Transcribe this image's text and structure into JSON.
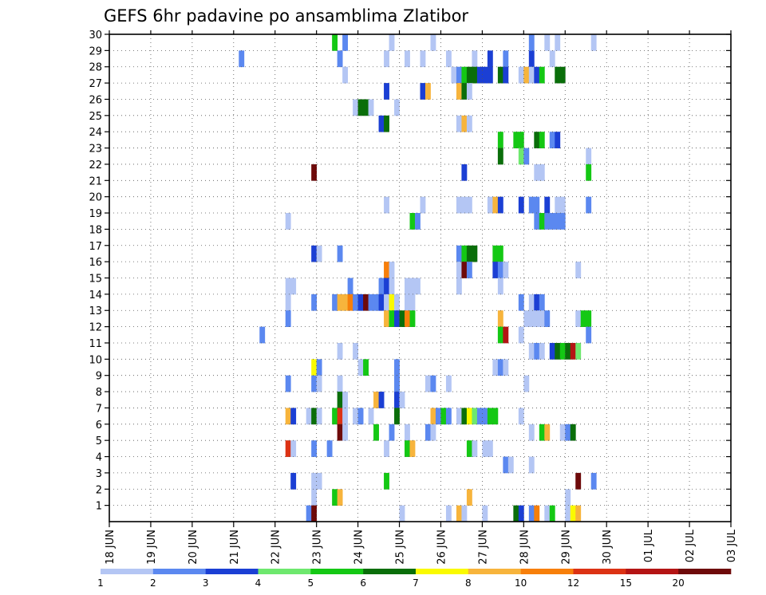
{
  "chart_data": {
    "type": "heatmap",
    "title": "GEFS 6hr padavine po ansamblima Zlatibor",
    "x_ticks": [
      "18 JUN",
      "19 JUN",
      "20 JUN",
      "21 JUN",
      "22 JUN",
      "23 JUN",
      "24 JUN",
      "25 JUN",
      "26 JUN",
      "27 JUN",
      "28 JUN",
      "29 JUN",
      "30 JUN",
      "01 JUL",
      "02 JUL",
      "03 JUL"
    ],
    "x_range": [
      "18 JUN 00",
      "03 JUL 00"
    ],
    "x_step_hours": 6,
    "y_ticks": [
      1,
      2,
      3,
      4,
      5,
      6,
      7,
      8,
      9,
      10,
      11,
      12,
      13,
      14,
      15,
      16,
      17,
      18,
      19,
      20,
      21,
      22,
      23,
      24,
      25,
      26,
      27,
      28,
      29,
      30
    ],
    "y_range": [
      0,
      30
    ],
    "grid": true,
    "legend": {
      "position": "bottom",
      "labels": [
        "1",
        "2",
        "3",
        "4",
        "5",
        "6",
        "7",
        "8",
        "10",
        "12",
        "15",
        "20"
      ],
      "colors": [
        "#b4c6f4",
        "#5b88f0",
        "#1b3fd4",
        "#6ee86e",
        "#14c814",
        "#0a6e0a",
        "#fafa00",
        "#f7b43c",
        "#f77f0a",
        "#dc3214",
        "#b41414",
        "#6e0a0a"
      ]
    },
    "cells": [
      [
        25,
        29,
        1
      ],
      [
        43,
        30,
        4
      ],
      [
        45,
        30,
        1
      ],
      [
        54,
        30,
        0
      ],
      [
        62,
        30,
        0
      ],
      [
        44,
        29,
        1
      ],
      [
        53,
        29,
        0
      ],
      [
        57,
        29,
        0
      ],
      [
        60,
        29,
        0
      ],
      [
        65,
        29,
        0
      ],
      [
        70,
        29,
        0
      ],
      [
        73,
        29,
        2
      ],
      [
        76,
        29,
        1
      ],
      [
        81,
        29,
        2
      ],
      [
        85,
        29,
        0
      ],
      [
        81,
        30,
        1
      ],
      [
        84,
        30,
        0
      ],
      [
        93,
        30,
        0
      ],
      [
        86,
        30,
        0
      ],
      [
        45,
        28,
        0
      ],
      [
        66,
        28,
        0
      ],
      [
        67,
        28,
        1
      ],
      [
        68,
        28,
        4
      ],
      [
        69,
        28,
        5
      ],
      [
        70,
        28,
        5
      ],
      [
        71,
        28,
        2
      ],
      [
        72,
        28,
        2
      ],
      [
        73,
        28,
        2
      ],
      [
        75,
        28,
        5
      ],
      [
        76,
        28,
        2
      ],
      [
        79,
        28,
        0
      ],
      [
        80,
        28,
        7
      ],
      [
        81,
        28,
        0
      ],
      [
        82,
        28,
        2
      ],
      [
        83,
        28,
        4
      ],
      [
        86,
        28,
        5
      ],
      [
        87,
        28,
        5
      ],
      [
        53,
        27,
        2
      ],
      [
        60,
        27,
        2
      ],
      [
        61,
        27,
        7
      ],
      [
        67,
        27,
        7
      ],
      [
        68,
        27,
        5
      ],
      [
        69,
        27,
        0
      ],
      [
        47,
        26,
        0
      ],
      [
        48,
        26,
        5
      ],
      [
        49,
        26,
        5
      ],
      [
        50,
        26,
        0
      ],
      [
        55,
        26,
        0
      ],
      [
        52,
        25,
        2
      ],
      [
        53,
        25,
        5
      ],
      [
        67,
        25,
        0
      ],
      [
        68,
        25,
        7
      ],
      [
        69,
        25,
        0
      ],
      [
        75,
        24,
        4
      ],
      [
        78,
        24,
        4
      ],
      [
        79,
        24,
        4
      ],
      [
        82,
        24,
        5
      ],
      [
        83,
        24,
        4
      ],
      [
        85,
        24,
        1
      ],
      [
        86,
        24,
        2
      ],
      [
        75,
        23,
        5
      ],
      [
        79,
        23,
        3
      ],
      [
        80,
        23,
        1
      ],
      [
        92,
        23,
        0
      ],
      [
        39,
        22,
        11
      ],
      [
        68,
        22,
        2
      ],
      [
        82,
        22,
        0
      ],
      [
        83,
        22,
        0
      ],
      [
        92,
        22,
        4
      ],
      [
        53,
        20,
        0
      ],
      [
        60,
        20,
        0
      ],
      [
        67,
        20,
        0
      ],
      [
        68,
        20,
        0
      ],
      [
        69,
        20,
        0
      ],
      [
        73,
        20,
        0
      ],
      [
        74,
        20,
        7
      ],
      [
        75,
        20,
        2
      ],
      [
        79,
        20,
        2
      ],
      [
        81,
        20,
        1
      ],
      [
        82,
        20,
        1
      ],
      [
        84,
        20,
        2
      ],
      [
        86,
        20,
        0
      ],
      [
        87,
        20,
        0
      ],
      [
        92,
        20,
        1
      ],
      [
        34,
        19,
        0
      ],
      [
        58,
        19,
        4
      ],
      [
        59,
        19,
        1
      ],
      [
        82,
        19,
        1
      ],
      [
        83,
        19,
        4
      ],
      [
        84,
        19,
        1
      ],
      [
        85,
        19,
        1
      ],
      [
        86,
        19,
        1
      ],
      [
        87,
        19,
        1
      ],
      [
        39,
        17,
        2
      ],
      [
        40,
        17,
        0
      ],
      [
        44,
        17,
        1
      ],
      [
        67,
        17,
        1
      ],
      [
        68,
        17,
        4
      ],
      [
        69,
        17,
        5
      ],
      [
        70,
        17,
        5
      ],
      [
        74,
        17,
        4
      ],
      [
        75,
        17,
        4
      ],
      [
        53,
        16,
        8
      ],
      [
        54,
        16,
        0
      ],
      [
        67,
        16,
        0
      ],
      [
        68,
        16,
        11
      ],
      [
        69,
        16,
        1
      ],
      [
        74,
        16,
        2
      ],
      [
        75,
        16,
        1
      ],
      [
        76,
        16,
        0
      ],
      [
        90,
        16,
        0
      ],
      [
        34,
        15,
        0
      ],
      [
        35,
        15,
        0
      ],
      [
        46,
        15,
        1
      ],
      [
        52,
        15,
        1
      ],
      [
        53,
        15,
        2
      ],
      [
        54,
        15,
        0
      ],
      [
        57,
        15,
        0
      ],
      [
        58,
        15,
        0
      ],
      [
        59,
        15,
        0
      ],
      [
        67,
        15,
        0
      ],
      [
        75,
        15,
        0
      ],
      [
        34,
        14,
        0
      ],
      [
        39,
        14,
        1
      ],
      [
        43,
        14,
        1
      ],
      [
        44,
        14,
        7
      ],
      [
        45,
        14,
        7
      ],
      [
        46,
        14,
        8
      ],
      [
        47,
        14,
        1
      ],
      [
        48,
        14,
        2
      ],
      [
        49,
        14,
        11
      ],
      [
        50,
        14,
        1
      ],
      [
        51,
        14,
        1
      ],
      [
        52,
        14,
        2
      ],
      [
        53,
        14,
        0
      ],
      [
        54,
        14,
        6
      ],
      [
        55,
        14,
        0
      ],
      [
        57,
        14,
        0
      ],
      [
        58,
        14,
        0
      ],
      [
        79,
        14,
        1
      ],
      [
        81,
        14,
        0
      ],
      [
        82,
        14,
        2
      ],
      [
        83,
        14,
        1
      ],
      [
        34,
        13,
        1
      ],
      [
        53,
        13,
        7
      ],
      [
        54,
        13,
        4
      ],
      [
        55,
        13,
        2
      ],
      [
        56,
        13,
        5
      ],
      [
        57,
        13,
        8
      ],
      [
        58,
        13,
        4
      ],
      [
        75,
        13,
        7
      ],
      [
        80,
        13,
        0
      ],
      [
        81,
        13,
        0
      ],
      [
        82,
        13,
        0
      ],
      [
        83,
        13,
        0
      ],
      [
        84,
        13,
        1
      ],
      [
        90,
        13,
        0
      ],
      [
        91,
        13,
        4
      ],
      [
        92,
        13,
        4
      ],
      [
        29,
        12,
        1
      ],
      [
        75,
        12,
        4
      ],
      [
        76,
        12,
        10
      ],
      [
        79,
        12,
        0
      ],
      [
        92,
        12,
        1
      ],
      [
        44,
        11,
        0
      ],
      [
        47,
        11,
        0
      ],
      [
        81,
        11,
        0
      ],
      [
        82,
        11,
        1
      ],
      [
        83,
        11,
        0
      ],
      [
        85,
        11,
        2
      ],
      [
        86,
        11,
        5
      ],
      [
        87,
        11,
        4
      ],
      [
        88,
        11,
        5
      ],
      [
        89,
        11,
        10
      ],
      [
        90,
        11,
        3
      ],
      [
        39,
        10,
        6
      ],
      [
        40,
        10,
        1
      ],
      [
        48,
        10,
        0
      ],
      [
        49,
        10,
        4
      ],
      [
        55,
        10,
        1
      ],
      [
        74,
        10,
        0
      ],
      [
        75,
        10,
        1
      ],
      [
        76,
        10,
        0
      ],
      [
        34,
        9,
        1
      ],
      [
        39,
        9,
        1
      ],
      [
        40,
        9,
        0
      ],
      [
        44,
        9,
        0
      ],
      [
        55,
        9,
        1
      ],
      [
        61,
        9,
        0
      ],
      [
        62,
        9,
        1
      ],
      [
        65,
        9,
        0
      ],
      [
        80,
        9,
        0
      ],
      [
        44,
        8,
        5
      ],
      [
        45,
        8,
        0
      ],
      [
        51,
        8,
        7
      ],
      [
        52,
        8,
        2
      ],
      [
        55,
        8,
        2
      ],
      [
        56,
        8,
        0
      ],
      [
        34,
        7,
        7
      ],
      [
        35,
        7,
        2
      ],
      [
        38,
        7,
        0
      ],
      [
        39,
        7,
        5
      ],
      [
        40,
        7,
        0
      ],
      [
        43,
        7,
        4
      ],
      [
        44,
        7,
        9
      ],
      [
        45,
        7,
        0
      ],
      [
        47,
        7,
        0
      ],
      [
        48,
        7,
        1
      ],
      [
        50,
        7,
        0
      ],
      [
        55,
        7,
        5
      ],
      [
        62,
        7,
        7
      ],
      [
        63,
        7,
        1
      ],
      [
        64,
        7,
        4
      ],
      [
        65,
        7,
        1
      ],
      [
        67,
        7,
        0
      ],
      [
        68,
        7,
        5
      ],
      [
        69,
        7,
        6
      ],
      [
        70,
        7,
        3
      ],
      [
        71,
        7,
        1
      ],
      [
        72,
        7,
        1
      ],
      [
        73,
        7,
        4
      ],
      [
        74,
        7,
        4
      ],
      [
        79,
        7,
        0
      ],
      [
        44,
        6,
        11
      ],
      [
        45,
        6,
        0
      ],
      [
        51,
        6,
        4
      ],
      [
        54,
        6,
        1
      ],
      [
        57,
        6,
        0
      ],
      [
        61,
        6,
        1
      ],
      [
        62,
        6,
        0
      ],
      [
        81,
        6,
        0
      ],
      [
        83,
        6,
        4
      ],
      [
        84,
        6,
        7
      ],
      [
        87,
        6,
        0
      ],
      [
        88,
        6,
        1
      ],
      [
        89,
        6,
        5
      ],
      [
        34,
        5,
        9
      ],
      [
        35,
        5,
        0
      ],
      [
        39,
        5,
        1
      ],
      [
        42,
        5,
        1
      ],
      [
        53,
        5,
        0
      ],
      [
        57,
        5,
        4
      ],
      [
        58,
        5,
        7
      ],
      [
        69,
        5,
        4
      ],
      [
        70,
        5,
        0
      ],
      [
        72,
        5,
        0
      ],
      [
        73,
        5,
        0
      ],
      [
        76,
        4,
        1
      ],
      [
        77,
        4,
        0
      ],
      [
        81,
        4,
        0
      ],
      [
        35,
        3,
        2
      ],
      [
        39,
        3,
        0
      ],
      [
        40,
        3,
        0
      ],
      [
        53,
        3,
        4
      ],
      [
        90,
        3,
        11
      ],
      [
        93,
        3,
        1
      ],
      [
        39,
        2,
        0
      ],
      [
        43,
        2,
        4
      ],
      [
        44,
        2,
        7
      ],
      [
        69,
        2,
        7
      ],
      [
        88,
        2,
        0
      ],
      [
        38,
        1,
        1
      ],
      [
        39,
        1,
        11
      ],
      [
        56,
        1,
        0
      ],
      [
        65,
        1,
        0
      ],
      [
        67,
        1,
        7
      ],
      [
        68,
        1,
        0
      ],
      [
        72,
        1,
        0
      ],
      [
        78,
        1,
        5
      ],
      [
        79,
        1,
        2
      ],
      [
        81,
        1,
        1
      ],
      [
        82,
        1,
        8
      ],
      [
        84,
        1,
        0
      ],
      [
        85,
        1,
        4
      ],
      [
        88,
        1,
        0
      ],
      [
        89,
        1,
        6
      ],
      [
        90,
        1,
        7
      ]
    ]
  }
}
